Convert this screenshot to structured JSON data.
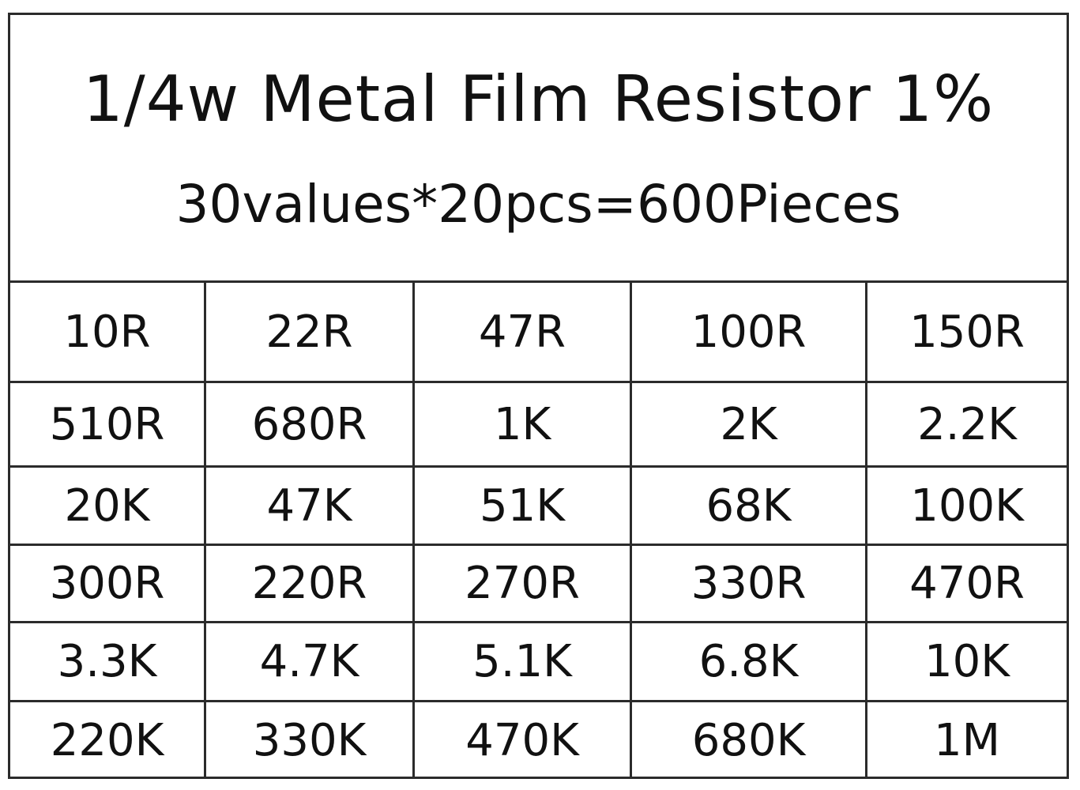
{
  "header": {
    "title": "1/4w Metal Film Resistor 1%",
    "subtitle": "30values*20pcs=600Pieces"
  },
  "table": {
    "rows": [
      [
        "10R",
        "22R",
        "47R",
        "100R",
        "150R"
      ],
      [
        "510R",
        "680R",
        "1K",
        "2K",
        "2.2K"
      ],
      [
        "20K",
        "47K",
        "51K",
        "68K",
        "100K"
      ],
      [
        "300R",
        "220R",
        "270R",
        "330R",
        "470R"
      ],
      [
        "3.3K",
        "4.7K",
        "5.1K",
        "6.8K",
        "10K"
      ],
      [
        "220K",
        "330K",
        "470K",
        "680K",
        "1M"
      ]
    ]
  }
}
